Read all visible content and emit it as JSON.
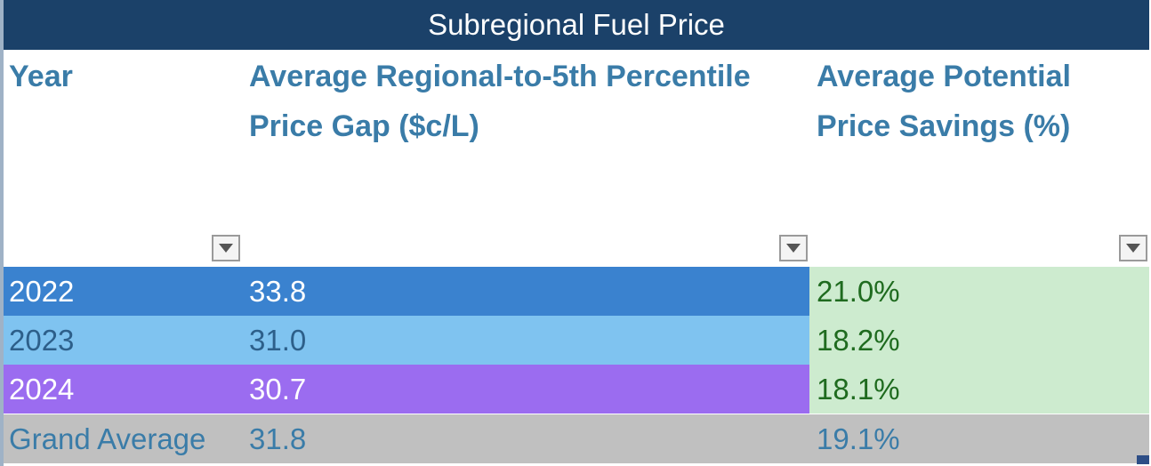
{
  "title": "Subregional Fuel Price",
  "headers": {
    "year": "Year",
    "gap": "Average Regional-to-5th Percentile Price Gap ($c/L)",
    "savings": "Average Potential Price Savings (%)"
  },
  "icons": {
    "filter": "dropdown-filter-icon"
  },
  "rows": [
    {
      "year": "2022",
      "gap": "33.8",
      "savings": "21.0%"
    },
    {
      "year": "2023",
      "gap": "31.0",
      "savings": "18.2%"
    },
    {
      "year": "2024",
      "gap": "30.7",
      "savings": "18.1%"
    }
  ],
  "total": {
    "label": "Grand Average",
    "gap": "31.8",
    "savings": "19.1%"
  },
  "colors": {
    "title_bg": "#1b4169",
    "header_text": "#3a7ca8",
    "row_2022": "#3a82cf",
    "row_2023": "#7fc3f0",
    "row_2024": "#9b6cf0",
    "savings_bg": "#cdebcf",
    "savings_text": "#1f6b1f",
    "total_bg": "#c0c0c0"
  }
}
